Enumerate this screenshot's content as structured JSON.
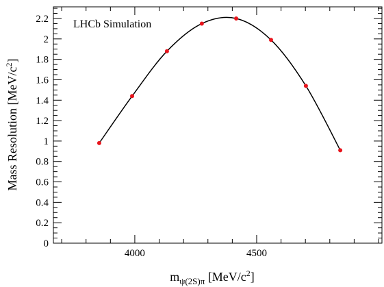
{
  "chart_data": {
    "type": "scatter",
    "annotation": "LHCb Simulation",
    "x_label": [
      "m",
      "ψ(2S)π",
      " [MeV/c",
      "2",
      "]"
    ],
    "y_label": [
      "Mass Resolution [MeV/c",
      "2",
      "]"
    ],
    "x": [
      3854,
      3989,
      4132,
      4275,
      4416,
      4559,
      4702,
      4843
    ],
    "series": [
      {
        "color": "#e8141c",
        "line_color": "#000000",
        "values": [
          0.98,
          1.44,
          1.88,
          2.15,
          2.2,
          1.99,
          1.54,
          0.91
        ]
      }
    ],
    "xlim": [
      3666,
      5014
    ],
    "xticks": [
      4000,
      4500
    ],
    "ylim": [
      0,
      2.314
    ],
    "yticks": [
      0,
      0.2,
      0.4,
      0.6,
      0.8,
      1,
      1.2,
      1.4,
      1.6,
      1.8,
      2,
      2.2
    ],
    "grid": false
  }
}
